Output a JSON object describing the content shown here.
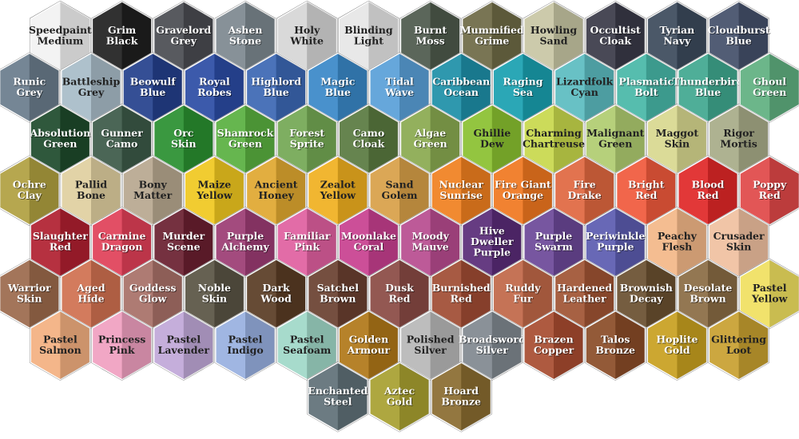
{
  "rows": [
    [
      {
        "label": [
          "Speedpaint",
          "Medium"
        ],
        "color": "#f2f2f2"
      },
      {
        "label": [
          "Grim",
          "Black"
        ],
        "color": "#202020"
      },
      {
        "label": [
          "Gravelord",
          "Grey"
        ],
        "color": "#4a4c52"
      },
      {
        "label": [
          "Ashen",
          "Stone"
        ],
        "color": "#7d8890"
      },
      {
        "label": [
          "Holy",
          "White"
        ],
        "color": "#d6d6d6"
      },
      {
        "label": [
          "Blinding",
          "Light"
        ],
        "color": "#e6e6e6"
      },
      {
        "label": [
          "Burnt",
          "Moss"
        ],
        "color": "#4e5a4c"
      },
      {
        "label": [
          "Mummified",
          "Grime"
        ],
        "color": "#6e6a46"
      },
      {
        "label": [
          "Howling",
          "Sand"
        ],
        "color": "#c8c6a4"
      },
      {
        "label": [
          "Occultist",
          "Cloak"
        ],
        "color": "#3a3a48"
      },
      {
        "label": [
          "Tyrian",
          "Navy"
        ],
        "color": "#3c4a5c"
      },
      {
        "label": [
          "Cloudburst",
          "Blue"
        ],
        "color": "#44506a"
      }
    ],
    [
      {
        "label": [
          "Runic",
          "Grey"
        ],
        "color": "#6a7c8c"
      },
      {
        "label": [
          "Battleship",
          "Grey"
        ],
        "color": "#a8bcc8"
      },
      {
        "label": [
          "Beowulf",
          "Blue"
        ],
        "color": "#24408c"
      },
      {
        "label": [
          "Royal",
          "Robes"
        ],
        "color": "#2c4ca4"
      },
      {
        "label": [
          "Highlord",
          "Blue"
        ],
        "color": "#3c68b4"
      },
      {
        "label": [
          "Magic",
          "Blue"
        ],
        "color": "#3a88c8"
      },
      {
        "label": [
          "Tidal",
          "Wave"
        ],
        "color": "#5aa0d8"
      },
      {
        "label": [
          "Caribbean",
          "Ocean"
        ],
        "color": "#1e90a8"
      },
      {
        "label": [
          "Raging",
          "Sea"
        ],
        "color": "#1aa0b0"
      },
      {
        "label": [
          "Lizardfolk",
          "Cyan"
        ],
        "color": "#5cbcc0"
      },
      {
        "label": [
          "Plasmatic",
          "Bolt"
        ],
        "color": "#48b8a8"
      },
      {
        "label": [
          "Thunderbird",
          "Blue"
        ],
        "color": "#40a890"
      },
      {
        "label": [
          "Ghoul",
          "Green"
        ],
        "color": "#60b080"
      }
    ],
    [
      {
        "label": [
          "Absolution",
          "Green"
        ],
        "color": "#1e4a2c"
      },
      {
        "label": [
          "Gunner",
          "Camo"
        ],
        "color": "#3c5a48"
      },
      {
        "label": [
          "Orc",
          "Skin"
        ],
        "color": "#2a9030"
      },
      {
        "label": [
          "Shamrock",
          "Green"
        ],
        "color": "#5ab040"
      },
      {
        "label": [
          "Forest",
          "Sprite"
        ],
        "color": "#74a854"
      },
      {
        "label": [
          "Camo",
          "Cloak"
        ],
        "color": "#5a7a40"
      },
      {
        "label": [
          "Algae",
          "Green"
        ],
        "color": "#8aaa50"
      },
      {
        "label": [
          "Ghillie",
          "Dew"
        ],
        "color": "#8ac030"
      },
      {
        "label": [
          "Charming",
          "Chartreuse"
        ],
        "color": "#c8d84c"
      },
      {
        "label": [
          "Malignant",
          "Green"
        ],
        "color": "#b0cc70"
      },
      {
        "label": [
          "Maggot",
          "Skin"
        ],
        "color": "#d8d890"
      },
      {
        "label": [
          "Rigor",
          "Mortis"
        ],
        "color": "#a8ac88"
      }
    ],
    [
      {
        "label": [
          "Ochre",
          "Clay"
        ],
        "color": "#b0a040"
      },
      {
        "label": [
          "Pallid",
          "Bone"
        ],
        "color": "#e0d0a0"
      },
      {
        "label": [
          "Bony",
          "Matter"
        ],
        "color": "#b8a890"
      },
      {
        "label": [
          "Maize",
          "Yellow"
        ],
        "color": "#f0c820"
      },
      {
        "label": [
          "Ancient",
          "Honey"
        ],
        "color": "#e0a830"
      },
      {
        "label": [
          "Zealot",
          "Yellow"
        ],
        "color": "#f0b020"
      },
      {
        "label": [
          "Sand",
          "Golem"
        ],
        "color": "#d8a048"
      },
      {
        "label": [
          "Nuclear",
          "Sunrise"
        ],
        "color": "#f08020"
      },
      {
        "label": [
          "Fire Giant",
          "Orange"
        ],
        "color": "#f07820"
      },
      {
        "label": [
          "Fire",
          "Drake"
        ],
        "color": "#e06840"
      },
      {
        "label": [
          "Bright",
          "Red"
        ],
        "color": "#f05a3c"
      },
      {
        "label": [
          "Blood",
          "Red"
        ],
        "color": "#e02828"
      },
      {
        "label": [
          "Poppy",
          "Red"
        ],
        "color": "#e04848"
      }
    ],
    [
      {
        "label": [
          "Slaughter",
          "Red"
        ],
        "color": "#b02030"
      },
      {
        "label": [
          "Carmine",
          "Dragon"
        ],
        "color": "#e04058"
      },
      {
        "label": [
          "Murder",
          "Scene"
        ],
        "color": "#6a2030"
      },
      {
        "label": [
          "Purple",
          "Alchemy"
        ],
        "color": "#9c3c74"
      },
      {
        "label": [
          "Familiar",
          "Pink"
        ],
        "color": "#e060a0"
      },
      {
        "label": [
          "Moonlake",
          "Coral"
        ],
        "color": "#c84090"
      },
      {
        "label": [
          "Moody",
          "Mauve"
        ],
        "color": "#b84c90"
      },
      {
        "label": [
          "Hive",
          "Dweller",
          "Purple"
        ],
        "color": "#5a2c78"
      },
      {
        "label": [
          "Purple",
          "Swarm"
        ],
        "color": "#6c4898"
      },
      {
        "label": [
          "Periwinkle",
          "Purple"
        ],
        "color": "#5c5cb0"
      },
      {
        "label": [
          "Peachy",
          "Flesh"
        ],
        "color": "#f4b888"
      },
      {
        "label": [
          "Crusader",
          "Skin"
        ],
        "color": "#f0c0a0"
      }
    ],
    [
      {
        "label": [
          "Warrior",
          "Skin"
        ],
        "color": "#9c6a4c"
      },
      {
        "label": [
          "Aged",
          "Hide"
        ],
        "color": "#d07050"
      },
      {
        "label": [
          "Goddess",
          "Glow"
        ],
        "color": "#a87068"
      },
      {
        "label": [
          "Noble",
          "Skin"
        ],
        "color": "#5a5444"
      },
      {
        "label": [
          "Dark",
          "Wood"
        ],
        "color": "#5a3c24"
      },
      {
        "label": [
          "Satchel",
          "Brown"
        ],
        "color": "#6a4030"
      },
      {
        "label": [
          "Dusk",
          "Red"
        ],
        "color": "#8a4a44"
      },
      {
        "label": [
          "Burnished",
          "Red"
        ],
        "color": "#a04c34"
      },
      {
        "label": [
          "Ruddy",
          "Fur"
        ],
        "color": "#c06848"
      },
      {
        "label": [
          "Hardened",
          "Leather"
        ],
        "color": "#a05434"
      },
      {
        "label": [
          "Brownish",
          "Decay"
        ],
        "color": "#6a5030"
      },
      {
        "label": [
          "Desolate",
          "Brown"
        ],
        "color": "#8a6c44"
      },
      {
        "label": [
          "Pastel",
          "Yellow"
        ],
        "color": "#f0e060"
      }
    ],
    [
      {
        "label": [
          "Pastel",
          "Salmon"
        ],
        "color": "#f4b080"
      },
      {
        "label": [
          "Princess",
          "Pink"
        ],
        "color": "#f0a0c0"
      },
      {
        "label": [
          "Pastel",
          "Lavender"
        ],
        "color": "#c0a8d8"
      },
      {
        "label": [
          "Pastel",
          "Indigo"
        ],
        "color": "#98b0e0"
      },
      {
        "label": [
          "Pastel",
          "Seafoam"
        ],
        "color": "#a0d8c8"
      },
      {
        "label": [
          "Golden",
          "Armour"
        ],
        "color": "#b07818"
      },
      {
        "label": [
          "Polished",
          "Silver"
        ],
        "color": "#b8b8b8"
      },
      {
        "label": [
          "Broadsword",
          "Silver"
        ],
        "color": "#808890"
      },
      {
        "label": [
          "Brazen",
          "Copper"
        ],
        "color": "#a84c30"
      },
      {
        "label": [
          "Talos",
          "Bronze"
        ],
        "color": "#8a4c28"
      },
      {
        "label": [
          "Hoplite",
          "Gold"
        ],
        "color": "#c8a020"
      },
      {
        "label": [
          "Glittering",
          "Loot"
        ],
        "color": "#c8a030"
      }
    ],
    [
      {
        "label": [
          "Enchanted",
          "Steel"
        ],
        "color": "#607078"
      },
      {
        "label": [
          "Aztec",
          "Gold"
        ],
        "color": "#a8a030"
      },
      {
        "label": [
          "Hoard",
          "Bronze"
        ],
        "color": "#8a6c30"
      }
    ]
  ]
}
